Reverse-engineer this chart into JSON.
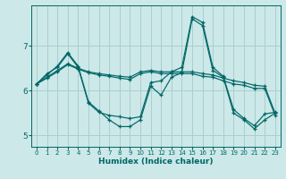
{
  "xlabel": "Humidex (Indice chaleur)",
  "background_color": "#cce8e8",
  "grid_color": "#aacece",
  "line_color": "#006666",
  "xlim": [
    -0.5,
    23.5
  ],
  "ylim": [
    4.75,
    7.9
  ],
  "yticks": [
    5,
    6,
    7
  ],
  "xticks": [
    0,
    1,
    2,
    3,
    4,
    5,
    6,
    7,
    8,
    9,
    10,
    11,
    12,
    13,
    14,
    15,
    16,
    17,
    18,
    19,
    20,
    21,
    22,
    23
  ],
  "line1_x": [
    0,
    1,
    2,
    3,
    4,
    5,
    6,
    7,
    8,
    9,
    10,
    11,
    12,
    13,
    14,
    15,
    16,
    17,
    18,
    19,
    20,
    21,
    22,
    23
  ],
  "line1_y": [
    6.15,
    6.35,
    6.55,
    6.85,
    6.55,
    5.75,
    5.55,
    5.35,
    5.2,
    5.2,
    5.35,
    6.1,
    5.9,
    6.3,
    6.4,
    7.6,
    7.45,
    6.45,
    6.3,
    5.5,
    5.35,
    5.15,
    5.35,
    5.5
  ],
  "line2_x": [
    0,
    1,
    2,
    3,
    4,
    5,
    6,
    7,
    8,
    9,
    10,
    11,
    12,
    13,
    14,
    15,
    16,
    17,
    18,
    19,
    20,
    21,
    22,
    23
  ],
  "line2_y": [
    6.15,
    6.38,
    6.52,
    6.82,
    6.52,
    5.72,
    5.52,
    5.45,
    5.42,
    5.38,
    5.42,
    6.18,
    6.22,
    6.42,
    6.52,
    7.65,
    7.52,
    6.52,
    6.32,
    5.58,
    5.38,
    5.22,
    5.48,
    5.52
  ],
  "line3_x": [
    0,
    1,
    2,
    3,
    4,
    5,
    6,
    7,
    8,
    9,
    10,
    11,
    12,
    13,
    14,
    15,
    16,
    17,
    18,
    19,
    20,
    21,
    22,
    23
  ],
  "line3_y": [
    6.15,
    6.3,
    6.45,
    6.6,
    6.5,
    6.42,
    6.38,
    6.35,
    6.32,
    6.3,
    6.42,
    6.45,
    6.42,
    6.42,
    6.42,
    6.42,
    6.38,
    6.35,
    6.28,
    6.22,
    6.18,
    6.12,
    6.1,
    5.5
  ],
  "line4_x": [
    0,
    1,
    2,
    3,
    4,
    5,
    6,
    7,
    8,
    9,
    10,
    11,
    12,
    13,
    14,
    15,
    16,
    17,
    18,
    19,
    20,
    21,
    22,
    23
  ],
  "line4_y": [
    6.15,
    6.28,
    6.42,
    6.58,
    6.48,
    6.4,
    6.35,
    6.32,
    6.28,
    6.25,
    6.38,
    6.42,
    6.38,
    6.38,
    6.38,
    6.38,
    6.32,
    6.3,
    6.22,
    6.15,
    6.12,
    6.05,
    6.05,
    5.45
  ]
}
